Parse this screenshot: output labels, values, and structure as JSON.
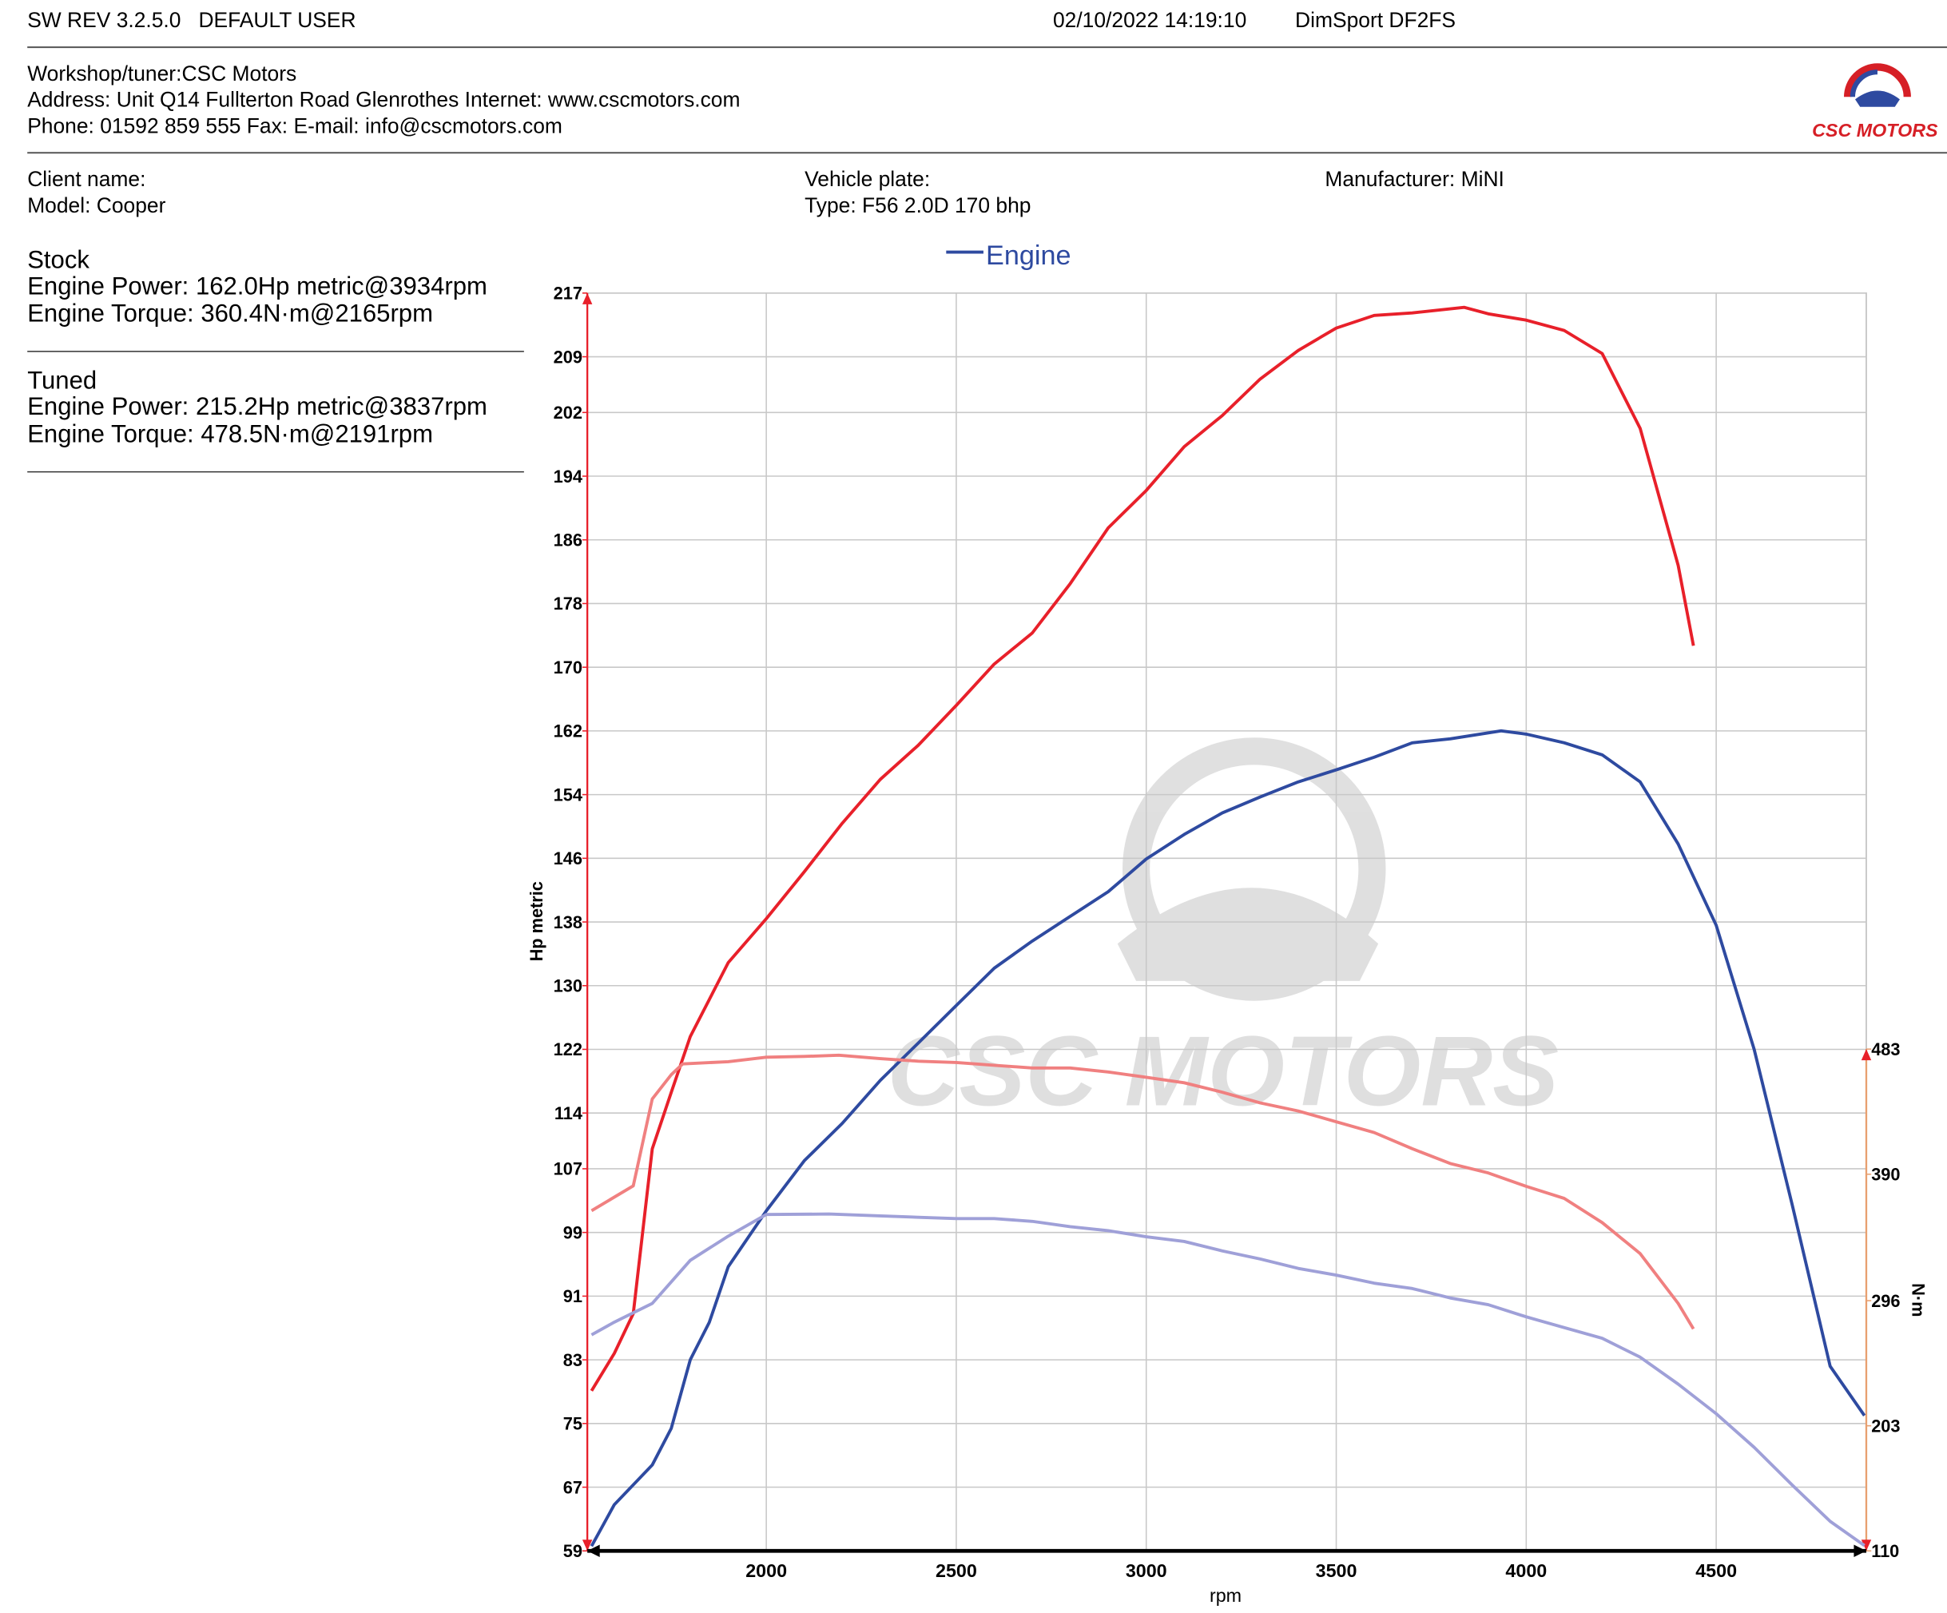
{
  "header": {
    "software": "SW REV 3.2.5.0   DEFAULT USER",
    "datetime": "02/10/2022 14:19:10",
    "device": "DimSport DF2FS"
  },
  "workshop": [
    "Workshop/tuner:CSC Motors",
    "Address: Unit Q14 Fullterton Road Glenrothes Internet: www.cscmotors.com",
    "Phone: 01592 859 555 Fax:  E-mail: info@cscmotors.com"
  ],
  "logo": {
    "text": "CSC MOTORS"
  },
  "client": {
    "name": "Client name:",
    "model": "Model: Cooper",
    "plate": "Vehicle plate:",
    "type": "Type: F56 2.0D 170 bhp",
    "manufacturer": "Manufacturer: MiNI"
  },
  "summary": [
    {
      "label": "Stock",
      "color": "#2e4aa0",
      "power": "Engine Power: 162.0Hp metric@3934rpm",
      "torque": "Engine Torque: 360.4N·m@2165rpm"
    },
    {
      "label": "Tuned",
      "color": "#e8202a",
      "power": "Engine Power: 215.2Hp metric@3837rpm",
      "torque": "Engine Torque: 478.5N·m@2191rpm"
    }
  ],
  "chart_data": {
    "type": "line",
    "legend": {
      "label": "Engine",
      "color": "#2e4aa0"
    },
    "x_label": "rpm",
    "y_label": "Hp metric",
    "y2_label": "N·m",
    "grid": true,
    "xlim": [
      1529,
      4895
    ],
    "xticks": [
      2000,
      2500,
      3000,
      3500,
      4000,
      4500
    ],
    "ylim": [
      59,
      217
    ],
    "yticks": [
      59,
      67,
      75,
      83,
      91,
      99,
      107,
      114,
      122,
      130,
      138,
      146,
      154,
      162,
      170,
      178,
      186,
      194,
      202,
      209,
      217
    ],
    "y2lim": [
      110,
      1045
    ],
    "y2ticks": [
      110,
      203,
      296,
      390,
      483
    ],
    "series": [
      {
        "color": "#e8202a",
        "axis": "y",
        "x": [
          1540,
          1600,
          1650,
          1700,
          1750,
          1800,
          1900,
          2000,
          2100,
          2200,
          2300,
          2400,
          2500,
          2600,
          2700,
          2800,
          2900,
          3000,
          3100,
          3200,
          3300,
          3400,
          3500,
          3600,
          3700,
          3837,
          3900,
          4000,
          4100,
          4200,
          4300,
          4400,
          4440
        ],
        "values": [
          79.1,
          83.8,
          88.8,
          109.5,
          116.6,
          123.6,
          132.9,
          138.4,
          144.3,
          150.4,
          155.9,
          160.2,
          165.2,
          170.4,
          174.3,
          180.5,
          187.5,
          192.2,
          197.7,
          201.6,
          206.2,
          209.8,
          212.6,
          214.2,
          214.5,
          215.2,
          214.4,
          213.6,
          212.3,
          209.4,
          200.0,
          182.8,
          172.7
        ]
      },
      {
        "color": "#2e4aa0",
        "axis": "y",
        "x": [
          1540,
          1600,
          1700,
          1750,
          1800,
          1850,
          1900,
          2000,
          2100,
          2200,
          2300,
          2400,
          2500,
          2600,
          2700,
          2800,
          2900,
          3000,
          3100,
          3200,
          3300,
          3400,
          3500,
          3600,
          3700,
          3800,
          3934,
          4000,
          4100,
          4200,
          4300,
          4400,
          4500,
          4600,
          4700,
          4800,
          4890
        ],
        "values": [
          59.6,
          64.8,
          69.8,
          74.4,
          83.0,
          87.7,
          94.7,
          101.7,
          108.0,
          112.7,
          118.1,
          122.8,
          127.5,
          132.2,
          135.6,
          138.7,
          141.8,
          145.9,
          149.0,
          151.7,
          153.7,
          155.6,
          157.1,
          158.7,
          160.5,
          161.0,
          162.0,
          161.6,
          160.5,
          159.0,
          155.6,
          147.8,
          137.6,
          122.0,
          102.5,
          82.2,
          76.0
        ]
      },
      {
        "color": "#f08080",
        "axis": "y2",
        "x": [
          1540,
          1650,
          1700,
          1750,
          1780,
          1900,
          2000,
          2100,
          2191,
          2300,
          2400,
          2500,
          2600,
          2700,
          2800,
          2900,
          3000,
          3100,
          3200,
          3300,
          3400,
          3500,
          3600,
          3700,
          3800,
          3900,
          4000,
          4100,
          4200,
          4300,
          4400,
          4440
        ],
        "values": [
          362.9,
          381.4,
          446,
          464,
          472,
          473.7,
          477,
          477.5,
          478.5,
          476,
          474,
          473,
          471,
          469,
          469,
          466,
          462,
          458,
          451,
          443,
          437,
          429,
          421,
          409,
          398,
          391,
          381,
          372,
          354,
          331,
          294,
          275
        ]
      },
      {
        "color": "#9fa0d8",
        "axis": "y2",
        "x": [
          1540,
          1600,
          1700,
          1800,
          1900,
          2000,
          2165,
          2300,
          2400,
          2500,
          2600,
          2700,
          2800,
          2900,
          3000,
          3100,
          3200,
          3300,
          3400,
          3500,
          3600,
          3700,
          3800,
          3900,
          4000,
          4100,
          4200,
          4300,
          4400,
          4500,
          4600,
          4700,
          4800,
          4890
        ],
        "values": [
          270.6,
          280,
          294,
          326,
          344,
          360,
          360.4,
          359,
          358,
          357,
          357,
          355,
          351,
          348,
          343.5,
          340,
          333,
          327,
          320,
          315,
          309,
          305,
          298,
          293,
          284,
          276,
          268,
          254,
          234,
          212,
          187,
          159,
          132,
          114
        ]
      }
    ]
  }
}
